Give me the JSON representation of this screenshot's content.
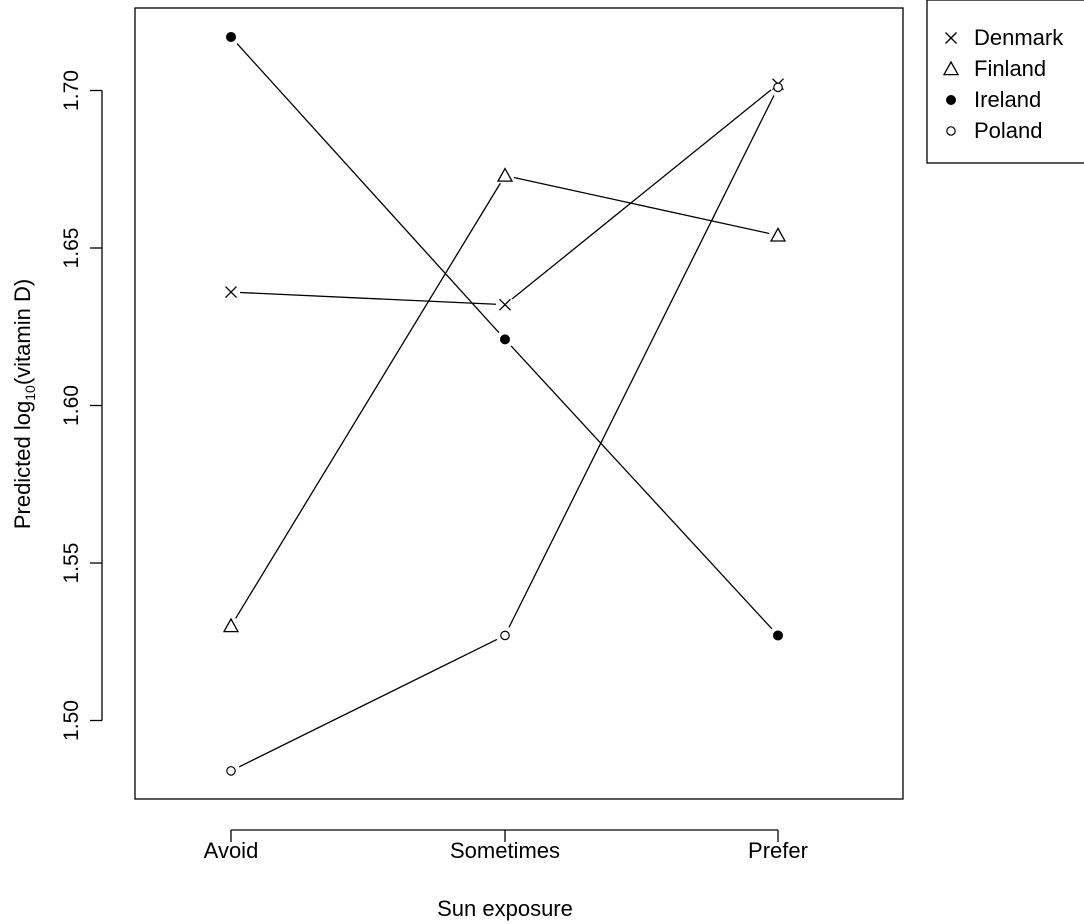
{
  "chart_data": {
    "type": "line",
    "title": "",
    "xlabel": "Sun exposure",
    "ylabel": {
      "prefix": "Predicted log",
      "sub": "10",
      "suffix": "(vitamin D)"
    },
    "categories": [
      "Avoid",
      "Sometimes",
      "Prefer"
    ],
    "ylim": [
      1.465,
      1.72
    ],
    "yticks": [
      "1.50",
      "1.55",
      "1.60",
      "1.65",
      "1.70"
    ],
    "grid": false,
    "legend_position": "outside top-right",
    "series": [
      {
        "name": "Denmark",
        "marker": "cross",
        "values": [
          1.636,
          1.632,
          1.702
        ]
      },
      {
        "name": "Finland",
        "marker": "triangle-open",
        "values": [
          1.53,
          1.673,
          1.654
        ]
      },
      {
        "name": "Ireland",
        "marker": "circle-filled",
        "values": [
          1.717,
          1.621,
          1.527
        ]
      },
      {
        "name": "Poland",
        "marker": "circle-open",
        "values": [
          1.484,
          1.527,
          1.701
        ]
      }
    ]
  }
}
